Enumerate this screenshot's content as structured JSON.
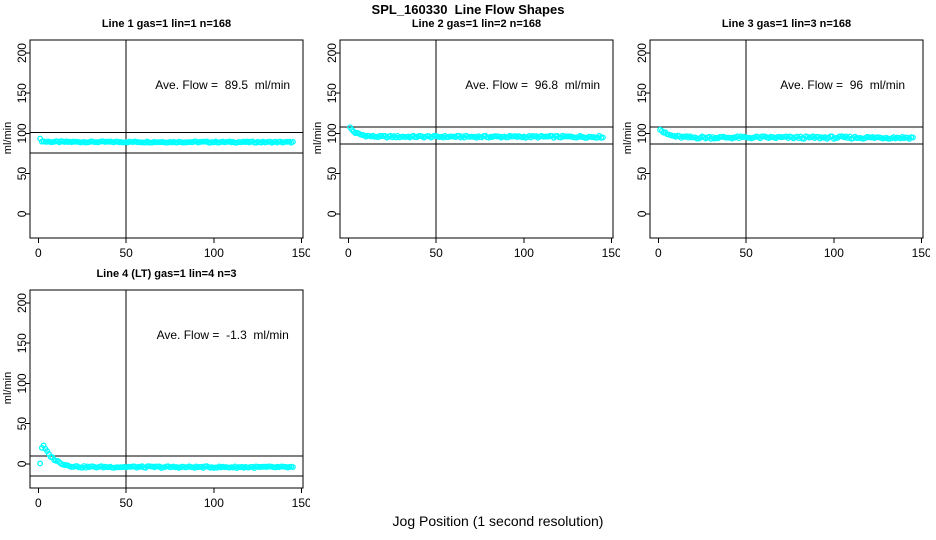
{
  "page": {
    "main_title": "SPL_160330  Line Flow Shapes",
    "x_axis_label": "Jog Position (1 second resolution)"
  },
  "chart_data": {
    "type": "scatter",
    "title": "SPL_160330  Line Flow Shapes",
    "xlabel": "Jog Position (1 second resolution)",
    "ylabel": "ml/min",
    "marker": "open-circle",
    "point_color": "#00FFFF",
    "line_color": "#000000",
    "grid": false,
    "x_ticks": [
      0,
      50,
      100,
      150
    ],
    "y_ticks": [
      0,
      50,
      100,
      150,
      200
    ],
    "x_range": [
      -4.76,
      150.76
    ],
    "y_range": [
      -30,
      216.2
    ],
    "vline_x": 50,
    "x_start": 1,
    "x_end": 145,
    "x_step": 1,
    "annotation_position": {
      "x": 105,
      "y": 155
    },
    "panels": [
      {
        "title": "Line 1 gas=1 lin=1 n=168",
        "annotation": "Ave. Flow =  89.5  ml/min",
        "ave_flow_ml_min": 89.5,
        "gas": 1,
        "lin": 1,
        "n": 168,
        "ref_line_upper": 101,
        "ref_line_lower": 76,
        "profile": [
          [
            1,
            93
          ],
          [
            2,
            90.5
          ],
          [
            4,
            89.8
          ],
          [
            10,
            89.5
          ],
          [
            145,
            89.2
          ]
        ],
        "jitter": 0.8
      },
      {
        "title": "Line 2 gas=1 lin=2 n=168",
        "annotation": "Ave. Flow =  96.8  ml/min",
        "ave_flow_ml_min": 96.8,
        "gas": 1,
        "lin": 2,
        "n": 168,
        "ref_line_upper": 108,
        "ref_line_lower": 87,
        "profile": [
          [
            1,
            107
          ],
          [
            2,
            104.5
          ],
          [
            3,
            102.5
          ],
          [
            4,
            101
          ],
          [
            5,
            100
          ],
          [
            6,
            99.2
          ],
          [
            8,
            98
          ],
          [
            10,
            97.2
          ],
          [
            13,
            96.4
          ],
          [
            17,
            96
          ],
          [
            145,
            95.8
          ]
        ],
        "jitter": 1.3
      },
      {
        "title": "Line 3 gas=1 lin=3 n=168",
        "annotation": "Ave. Flow =  96  ml/min",
        "ave_flow_ml_min": 96,
        "gas": 1,
        "lin": 3,
        "n": 168,
        "ref_line_upper": 108,
        "ref_line_lower": 87,
        "profile": [
          [
            1,
            106
          ],
          [
            2,
            103.5
          ],
          [
            3,
            101.5
          ],
          [
            4,
            100
          ],
          [
            5,
            99
          ],
          [
            6,
            98.2
          ],
          [
            8,
            97
          ],
          [
            10,
            96.2
          ],
          [
            13,
            95.5
          ],
          [
            17,
            95
          ],
          [
            145,
            94.8
          ]
        ],
        "jitter": 1.6
      },
      {
        "title": "Line 4 (LT) gas=1 lin=4 n=3",
        "annotation": "Ave. Flow =  -1.3  ml/min",
        "ave_flow_ml_min": -1.3,
        "gas": 1,
        "lin": 4,
        "n": 3,
        "ref_line_upper": 10,
        "ref_line_lower": -15,
        "profile": [
          [
            1,
            0.5
          ],
          [
            2,
            20
          ],
          [
            3,
            22
          ],
          [
            4,
            18.5
          ],
          [
            5,
            15
          ],
          [
            6,
            12
          ],
          [
            7,
            9.5
          ],
          [
            8,
            7.5
          ],
          [
            9,
            5.8
          ],
          [
            10,
            4.3
          ],
          [
            12,
            1.8
          ],
          [
            14,
            0
          ],
          [
            16,
            -1.5
          ],
          [
            18,
            -2.5
          ],
          [
            21,
            -3.3
          ],
          [
            25,
            -3.8
          ],
          [
            145,
            -4.2
          ]
        ],
        "jitter": 1.1
      }
    ]
  }
}
